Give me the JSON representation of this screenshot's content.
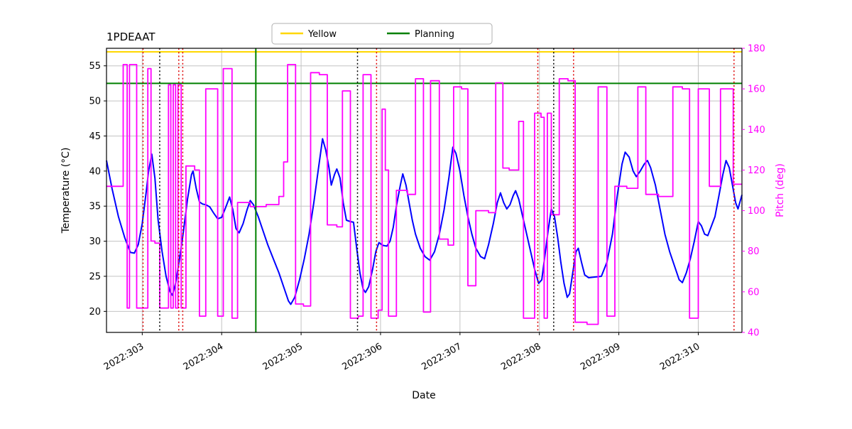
{
  "colors": {
    "blue": "#0000ff",
    "magenta": "#ff00ff",
    "gold": "#ffd700",
    "green": "#008000",
    "red": "#dd0000",
    "black": "#000000",
    "grid": "#c3c3c3"
  },
  "legend": {
    "items": [
      {
        "label": "Yellow",
        "color": "#ffd700"
      },
      {
        "label": "Planning",
        "color": "#008000"
      }
    ]
  },
  "chart_data": {
    "type": "line",
    "title": "1PDEAAT",
    "xlabel": "Date",
    "ylabel_left": "Temperature (°C)",
    "ylabel_right": "Pitch (deg)",
    "grid": true,
    "legend_position": "top-center",
    "x_range": [
      302.55,
      310.55
    ],
    "y_left_range": [
      17,
      57.5
    ],
    "y_right_range": [
      40,
      180
    ],
    "x_ticks": [
      {
        "v": 303,
        "label": "2022:303"
      },
      {
        "v": 304,
        "label": "2022:304"
      },
      {
        "v": 305,
        "label": "2022:305"
      },
      {
        "v": 306,
        "label": "2022:306"
      },
      {
        "v": 307,
        "label": "2022:307"
      },
      {
        "v": 308,
        "label": "2022:308"
      },
      {
        "v": 309,
        "label": "2022:309"
      },
      {
        "v": 310,
        "label": "2022:310"
      }
    ],
    "y_left_ticks": [
      20,
      25,
      30,
      35,
      40,
      45,
      50,
      55
    ],
    "y_right_ticks": [
      40,
      60,
      80,
      100,
      120,
      140,
      160,
      180
    ],
    "hlines": [
      {
        "value": 57.0,
        "color_key": "gold",
        "width": 2,
        "name": "yellow-limit-line"
      },
      {
        "value": 52.5,
        "color_key": "green",
        "width": 2,
        "name": "planning-limit-line"
      }
    ],
    "vlines": [
      {
        "x": 304.43,
        "color_key": "green",
        "style": "solid",
        "width": 2,
        "name": "planning-time-line"
      },
      {
        "x": 303.01,
        "color_key": "red",
        "style": "dotted",
        "name": "red-event-line"
      },
      {
        "x": 303.46,
        "color_key": "red",
        "style": "dotted",
        "name": "red-event-line"
      },
      {
        "x": 303.51,
        "color_key": "red",
        "style": "dotted",
        "name": "red-event-line"
      },
      {
        "x": 305.95,
        "color_key": "red",
        "style": "dotted",
        "name": "red-event-line"
      },
      {
        "x": 307.98,
        "color_key": "red",
        "style": "dotted",
        "name": "red-event-line"
      },
      {
        "x": 308.43,
        "color_key": "red",
        "style": "dotted",
        "name": "red-event-line"
      },
      {
        "x": 310.45,
        "color_key": "red",
        "style": "dotted",
        "name": "red-event-line"
      },
      {
        "x": 303.22,
        "color_key": "black",
        "style": "dotted",
        "name": "black-event-line"
      },
      {
        "x": 305.71,
        "color_key": "black",
        "style": "dotted",
        "name": "black-event-line"
      },
      {
        "x": 308.18,
        "color_key": "black",
        "style": "dotted",
        "name": "black-event-line"
      }
    ],
    "series": [
      {
        "name": "temperature",
        "axis": "left",
        "style": "line",
        "color_key": "blue",
        "width": 2,
        "points": [
          [
            302.55,
            41.5
          ],
          [
            302.62,
            37.5
          ],
          [
            302.7,
            33.5
          ],
          [
            302.78,
            30.5
          ],
          [
            302.85,
            28.4
          ],
          [
            302.9,
            28.3
          ],
          [
            302.95,
            29.5
          ],
          [
            303.0,
            32.5
          ],
          [
            303.05,
            37.0
          ],
          [
            303.08,
            40.0
          ],
          [
            303.12,
            42.4
          ],
          [
            303.16,
            39.0
          ],
          [
            303.2,
            33.0
          ],
          [
            303.25,
            28.5
          ],
          [
            303.3,
            25.0
          ],
          [
            303.35,
            22.8
          ],
          [
            303.38,
            22.3
          ],
          [
            303.42,
            24.0
          ],
          [
            303.47,
            27.5
          ],
          [
            303.52,
            31.5
          ],
          [
            303.57,
            36.0
          ],
          [
            303.62,
            39.5
          ],
          [
            303.64,
            40.0
          ],
          [
            303.68,
            37.5
          ],
          [
            303.72,
            35.6
          ],
          [
            303.76,
            35.3
          ],
          [
            303.8,
            35.2
          ],
          [
            303.85,
            34.9
          ],
          [
            303.9,
            34.0
          ],
          [
            303.95,
            33.2
          ],
          [
            304.0,
            33.4
          ],
          [
            304.05,
            34.8
          ],
          [
            304.1,
            36.3
          ],
          [
            304.14,
            34.5
          ],
          [
            304.18,
            31.8
          ],
          [
            304.22,
            31.2
          ],
          [
            304.27,
            32.5
          ],
          [
            304.32,
            34.5
          ],
          [
            304.36,
            35.8
          ],
          [
            304.4,
            35.2
          ],
          [
            304.46,
            33.5
          ],
          [
            304.52,
            31.5
          ],
          [
            304.58,
            29.5
          ],
          [
            304.65,
            27.5
          ],
          [
            304.72,
            25.5
          ],
          [
            304.78,
            23.5
          ],
          [
            304.84,
            21.5
          ],
          [
            304.87,
            21.0
          ],
          [
            304.92,
            22.0
          ],
          [
            304.98,
            24.5
          ],
          [
            305.04,
            27.5
          ],
          [
            305.1,
            31.0
          ],
          [
            305.16,
            35.5
          ],
          [
            305.22,
            40.5
          ],
          [
            305.27,
            44.6
          ],
          [
            305.31,
            43.0
          ],
          [
            305.35,
            40.5
          ],
          [
            305.38,
            38.0
          ],
          [
            305.42,
            39.5
          ],
          [
            305.45,
            40.3
          ],
          [
            305.49,
            39.0
          ],
          [
            305.53,
            35.5
          ],
          [
            305.57,
            33.0
          ],
          [
            305.62,
            32.8
          ],
          [
            305.66,
            32.7
          ],
          [
            305.7,
            29.0
          ],
          [
            305.74,
            25.5
          ],
          [
            305.78,
            23.2
          ],
          [
            305.81,
            22.7
          ],
          [
            305.85,
            23.5
          ],
          [
            305.9,
            26.0
          ],
          [
            305.94,
            28.5
          ],
          [
            305.98,
            29.8
          ],
          [
            306.03,
            29.4
          ],
          [
            306.08,
            29.3
          ],
          [
            306.12,
            30.0
          ],
          [
            306.16,
            32.0
          ],
          [
            306.2,
            35.0
          ],
          [
            306.25,
            38.0
          ],
          [
            306.28,
            39.6
          ],
          [
            306.32,
            38.0
          ],
          [
            306.36,
            35.5
          ],
          [
            306.4,
            33.0
          ],
          [
            306.44,
            31.0
          ],
          [
            306.5,
            29.0
          ],
          [
            306.56,
            27.8
          ],
          [
            306.62,
            27.3
          ],
          [
            306.68,
            28.5
          ],
          [
            306.74,
            31.0
          ],
          [
            306.8,
            34.5
          ],
          [
            306.86,
            39.0
          ],
          [
            306.91,
            43.4
          ],
          [
            306.95,
            42.5
          ],
          [
            307.0,
            40.0
          ],
          [
            307.05,
            36.5
          ],
          [
            307.1,
            33.5
          ],
          [
            307.15,
            31.0
          ],
          [
            307.2,
            29.0
          ],
          [
            307.26,
            27.8
          ],
          [
            307.31,
            27.5
          ],
          [
            307.36,
            29.5
          ],
          [
            307.42,
            32.5
          ],
          [
            307.47,
            35.5
          ],
          [
            307.51,
            36.9
          ],
          [
            307.55,
            35.5
          ],
          [
            307.59,
            34.6
          ],
          [
            307.63,
            35.2
          ],
          [
            307.67,
            36.5
          ],
          [
            307.7,
            37.2
          ],
          [
            307.74,
            36.0
          ],
          [
            307.79,
            33.5
          ],
          [
            307.84,
            31.0
          ],
          [
            307.89,
            28.5
          ],
          [
            307.94,
            26.0
          ],
          [
            307.99,
            24.0
          ],
          [
            308.03,
            24.5
          ],
          [
            308.07,
            28.0
          ],
          [
            308.11,
            31.5
          ],
          [
            308.15,
            34.6
          ],
          [
            308.19,
            33.5
          ],
          [
            308.23,
            30.5
          ],
          [
            308.27,
            27.0
          ],
          [
            308.31,
            24.0
          ],
          [
            308.35,
            22.0
          ],
          [
            308.38,
            22.5
          ],
          [
            308.42,
            25.5
          ],
          [
            308.46,
            28.5
          ],
          [
            308.49,
            29.0
          ],
          [
            308.53,
            27.0
          ],
          [
            308.57,
            25.2
          ],
          [
            308.62,
            24.8
          ],
          [
            308.7,
            24.9
          ],
          [
            308.78,
            25.0
          ],
          [
            308.85,
            27.0
          ],
          [
            308.92,
            31.0
          ],
          [
            308.98,
            36.5
          ],
          [
            309.04,
            41.0
          ],
          [
            309.08,
            42.7
          ],
          [
            309.13,
            42.0
          ],
          [
            309.18,
            40.0
          ],
          [
            309.22,
            39.2
          ],
          [
            309.27,
            40.0
          ],
          [
            309.32,
            41.0
          ],
          [
            309.36,
            41.5
          ],
          [
            309.4,
            40.5
          ],
          [
            309.46,
            38.0
          ],
          [
            309.52,
            34.5
          ],
          [
            309.58,
            31.0
          ],
          [
            309.64,
            28.5
          ],
          [
            309.7,
            26.5
          ],
          [
            309.76,
            24.5
          ],
          [
            309.8,
            24.1
          ],
          [
            309.85,
            25.5
          ],
          [
            309.9,
            27.5
          ],
          [
            309.95,
            30.0
          ],
          [
            310.0,
            32.8
          ],
          [
            310.04,
            32.2
          ],
          [
            310.08,
            31.0
          ],
          [
            310.12,
            30.8
          ],
          [
            310.16,
            32.0
          ],
          [
            310.21,
            33.5
          ],
          [
            310.26,
            36.5
          ],
          [
            310.31,
            39.5
          ],
          [
            310.35,
            41.5
          ],
          [
            310.39,
            40.5
          ],
          [
            310.43,
            38.0
          ],
          [
            310.47,
            35.5
          ],
          [
            310.5,
            34.6
          ],
          [
            310.55,
            36.6
          ]
        ]
      },
      {
        "name": "pitch",
        "axis": "right",
        "style": "step",
        "color_key": "magenta",
        "width": 1.8,
        "points": [
          [
            302.55,
            112
          ],
          [
            302.76,
            172
          ],
          [
            302.81,
            52
          ],
          [
            302.84,
            172
          ],
          [
            302.93,
            52
          ],
          [
            303.07,
            170
          ],
          [
            303.11,
            85
          ],
          [
            303.16,
            84
          ],
          [
            303.22,
            52
          ],
          [
            303.33,
            162
          ],
          [
            303.36,
            52
          ],
          [
            303.39,
            162
          ],
          [
            303.42,
            52
          ],
          [
            303.45,
            162
          ],
          [
            303.49,
            52
          ],
          [
            303.55,
            122
          ],
          [
            303.66,
            120
          ],
          [
            303.72,
            48
          ],
          [
            303.8,
            160
          ],
          [
            303.95,
            48
          ],
          [
            304.02,
            170
          ],
          [
            304.13,
            47
          ],
          [
            304.2,
            104
          ],
          [
            304.36,
            102
          ],
          [
            304.56,
            103
          ],
          [
            304.72,
            107
          ],
          [
            304.78,
            124
          ],
          [
            304.83,
            172
          ],
          [
            304.93,
            54
          ],
          [
            305.03,
            53
          ],
          [
            305.12,
            168
          ],
          [
            305.23,
            167
          ],
          [
            305.33,
            93
          ],
          [
            305.45,
            92
          ],
          [
            305.52,
            159
          ],
          [
            305.62,
            47
          ],
          [
            305.72,
            48
          ],
          [
            305.78,
            167
          ],
          [
            305.88,
            47
          ],
          [
            305.97,
            51
          ],
          [
            306.02,
            150
          ],
          [
            306.06,
            120
          ],
          [
            306.1,
            48
          ],
          [
            306.2,
            110
          ],
          [
            306.34,
            108
          ],
          [
            306.44,
            165
          ],
          [
            306.54,
            50
          ],
          [
            306.63,
            164
          ],
          [
            306.74,
            86
          ],
          [
            306.85,
            83
          ],
          [
            306.92,
            161
          ],
          [
            307.02,
            160
          ],
          [
            307.1,
            63
          ],
          [
            307.2,
            100
          ],
          [
            307.36,
            99
          ],
          [
            307.45,
            163
          ],
          [
            307.54,
            121
          ],
          [
            307.62,
            120
          ],
          [
            307.74,
            144
          ],
          [
            307.8,
            47
          ],
          [
            307.94,
            148
          ],
          [
            308.02,
            146
          ],
          [
            308.06,
            47
          ],
          [
            308.1,
            148
          ],
          [
            308.15,
            98
          ],
          [
            308.25,
            165
          ],
          [
            308.36,
            164
          ],
          [
            308.45,
            45
          ],
          [
            308.6,
            44
          ],
          [
            308.74,
            161
          ],
          [
            308.85,
            48
          ],
          [
            308.95,
            112
          ],
          [
            309.1,
            111
          ],
          [
            309.24,
            161
          ],
          [
            309.34,
            108
          ],
          [
            309.5,
            107
          ],
          [
            309.68,
            161
          ],
          [
            309.8,
            160
          ],
          [
            309.89,
            47
          ],
          [
            310.0,
            160
          ],
          [
            310.14,
            112
          ],
          [
            310.28,
            160
          ],
          [
            310.44,
            113
          ],
          [
            310.55,
            113
          ]
        ]
      }
    ]
  }
}
